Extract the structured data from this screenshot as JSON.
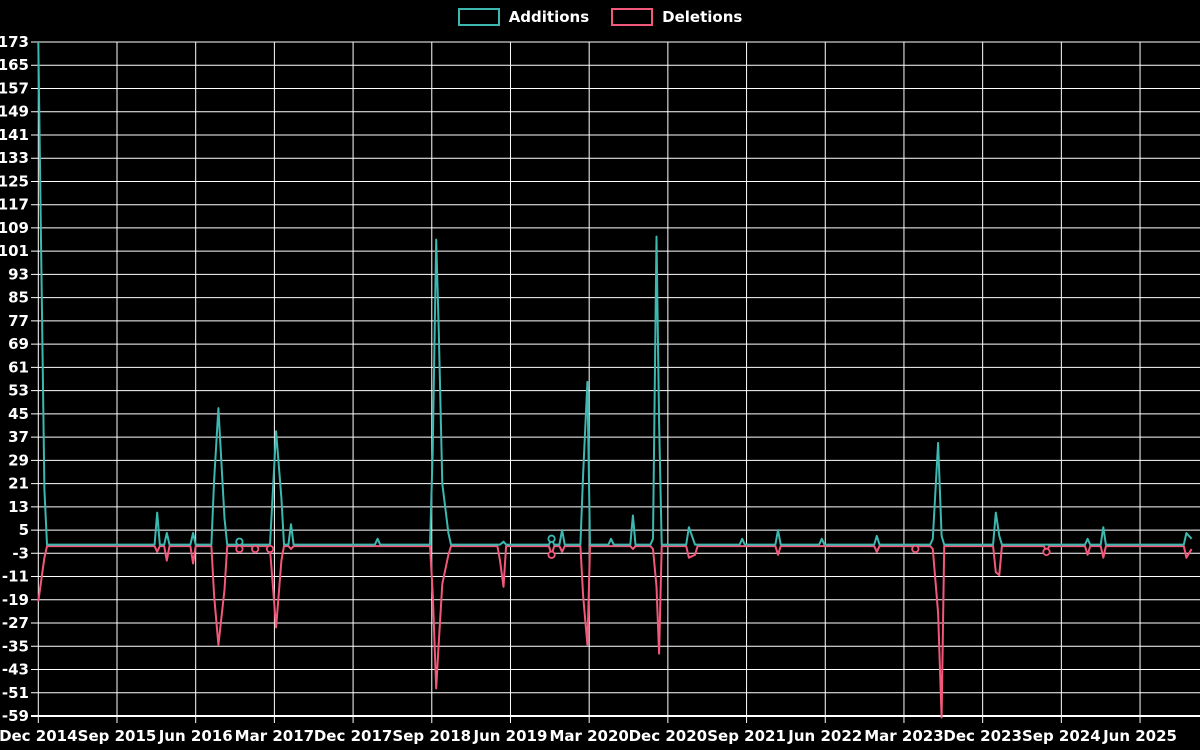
{
  "chart_data": {
    "type": "line",
    "title": "",
    "background_color": "#000000",
    "grid": {
      "show": true,
      "color": "#ffffff"
    },
    "text_color": "#ffffff",
    "legend": {
      "position": "top-center",
      "items": [
        {
          "label": "Additions",
          "color": "#3cb8b1"
        },
        {
          "label": "Deletions",
          "color": "#f2587a"
        }
      ]
    },
    "y_axis": {
      "min": -59,
      "max": 173,
      "tick_step": 8,
      "tick_labels": [
        173,
        165,
        157,
        149,
        141,
        133,
        125,
        117,
        109,
        101,
        93,
        85,
        77,
        69,
        61,
        53,
        45,
        37,
        29,
        21,
        13,
        5,
        -3,
        -11,
        -19,
        -27,
        -35,
        -43,
        -51,
        -59
      ]
    },
    "x_axis": {
      "tick_interval_months": 9,
      "tick_labels": [
        "Dec 2014",
        "Sep 2015",
        "Jun 2016",
        "Mar 2017",
        "Dec 2017",
        "Sep 2018",
        "Jun 2019",
        "Mar 2020",
        "Dec 2020",
        "Sep 2021",
        "Jun 2022",
        "Mar 2023",
        "Dec 2023",
        "Sep 2024",
        "Jun 2025"
      ]
    },
    "series": [
      {
        "name": "Additions",
        "color": "#3cb8b1",
        "value_key": "additions"
      },
      {
        "name": "Deletions",
        "color": "#f2587a",
        "value_key": "deletions"
      }
    ],
    "points_time_unit": "months_since_2014-12",
    "points": [
      {
        "t": 0.0,
        "date": "2014-12",
        "additions": 173,
        "deletions": -19
      },
      {
        "t": 0.7,
        "date": "2015-01",
        "additions": 19,
        "deletions": -4
      },
      {
        "t": 13.6,
        "date": "2016-01",
        "additions": 11,
        "deletions": -2
      },
      {
        "t": 14.7,
        "date": "2016-02",
        "additions": 4,
        "deletions": -5
      },
      {
        "t": 17.7,
        "date": "2016-05",
        "additions": 4,
        "deletions": -6
      },
      {
        "t": 20.1,
        "date": "2016-08",
        "additions": 22,
        "deletions": -17
      },
      {
        "t": 20.6,
        "date": "2016-09",
        "additions": 47,
        "deletions": -34
      },
      {
        "t": 21.3,
        "date": "2016-09",
        "additions": 9,
        "deletions": -15
      },
      {
        "t": 23.0,
        "date": "2016-11",
        "additions": 1,
        "deletions": -1,
        "marker": true
      },
      {
        "t": 24.8,
        "date": "2017-01",
        "additions": 0,
        "deletions": -1,
        "marker": true
      },
      {
        "t": 26.5,
        "date": "2017-02",
        "additions": 0,
        "deletions": -1,
        "marker": true
      },
      {
        "t": 27.2,
        "date": "2017-03",
        "additions": 39,
        "deletions": -28
      },
      {
        "t": 27.8,
        "date": "2017-04",
        "additions": 16,
        "deletions": -5
      },
      {
        "t": 28.9,
        "date": "2017-05",
        "additions": 7,
        "deletions": -1
      },
      {
        "t": 38.8,
        "date": "2018-03",
        "additions": 2,
        "deletions": 0
      },
      {
        "t": 45.1,
        "date": "2018-09",
        "additions": 32,
        "deletions": -16
      },
      {
        "t": 45.5,
        "date": "2018-10",
        "additions": 105,
        "deletions": -49
      },
      {
        "t": 45.8,
        "date": "2018-10",
        "additions": 73,
        "deletions": -33
      },
      {
        "t": 46.2,
        "date": "2018-10",
        "additions": 21,
        "deletions": -13
      },
      {
        "t": 46.9,
        "date": "2018-11",
        "additions": 4,
        "deletions": -3
      },
      {
        "t": 52.8,
        "date": "2019-05",
        "additions": 0,
        "deletions": -5
      },
      {
        "t": 53.2,
        "date": "2019-05",
        "additions": 1,
        "deletions": -14
      },
      {
        "t": 58.7,
        "date": "2019-11",
        "additions": 2,
        "deletions": -3,
        "marker": true
      },
      {
        "t": 59.9,
        "date": "2019-12",
        "additions": 5,
        "deletions": -2
      },
      {
        "t": 62.3,
        "date": "2020-02",
        "additions": 24,
        "deletions": -17
      },
      {
        "t": 62.8,
        "date": "2020-03",
        "additions": 56,
        "deletions": -34
      },
      {
        "t": 65.5,
        "date": "2020-05",
        "additions": 2,
        "deletions": 0
      },
      {
        "t": 68.0,
        "date": "2020-08",
        "additions": 10,
        "deletions": -1
      },
      {
        "t": 70.3,
        "date": "2020-10",
        "additions": 2,
        "deletions": -1
      },
      {
        "t": 70.7,
        "date": "2020-11",
        "additions": 106,
        "deletions": -14
      },
      {
        "t": 71.0,
        "date": "2020-11",
        "additions": 42,
        "deletions": -37
      },
      {
        "t": 74.4,
        "date": "2021-02",
        "additions": 6,
        "deletions": -4
      },
      {
        "t": 75.1,
        "date": "2021-03",
        "additions": 0,
        "deletions": -3
      },
      {
        "t": 80.5,
        "date": "2021-08",
        "additions": 2,
        "deletions": 0
      },
      {
        "t": 84.6,
        "date": "2022-01",
        "additions": 5,
        "deletions": -3
      },
      {
        "t": 89.6,
        "date": "2022-06",
        "additions": 2,
        "deletions": 0
      },
      {
        "t": 95.9,
        "date": "2022-12",
        "additions": 3,
        "deletions": -2
      },
      {
        "t": 100.3,
        "date": "2023-04",
        "additions": 0,
        "deletions": -1,
        "marker": true
      },
      {
        "t": 102.3,
        "date": "2023-06",
        "additions": 2,
        "deletions": -1
      },
      {
        "t": 102.9,
        "date": "2023-07",
        "additions": 35,
        "deletions": -23
      },
      {
        "t": 103.3,
        "date": "2023-07",
        "additions": 3,
        "deletions": -59
      },
      {
        "t": 109.5,
        "date": "2024-01",
        "additions": 11,
        "deletions": -9
      },
      {
        "t": 109.9,
        "date": "2024-02",
        "additions": 3,
        "deletions": -10
      },
      {
        "t": 115.3,
        "date": "2024-07",
        "additions": 0,
        "deletions": -2,
        "marker": true
      },
      {
        "t": 120.0,
        "date": "2024-12",
        "additions": 2,
        "deletions": -3
      },
      {
        "t": 121.8,
        "date": "2025-02",
        "additions": 6,
        "deletions": -4
      },
      {
        "t": 131.3,
        "date": "2025-11",
        "additions": 4,
        "deletions": -4
      },
      {
        "t": 131.9,
        "date": "2025-11",
        "additions": 2,
        "deletions": -1
      }
    ]
  }
}
